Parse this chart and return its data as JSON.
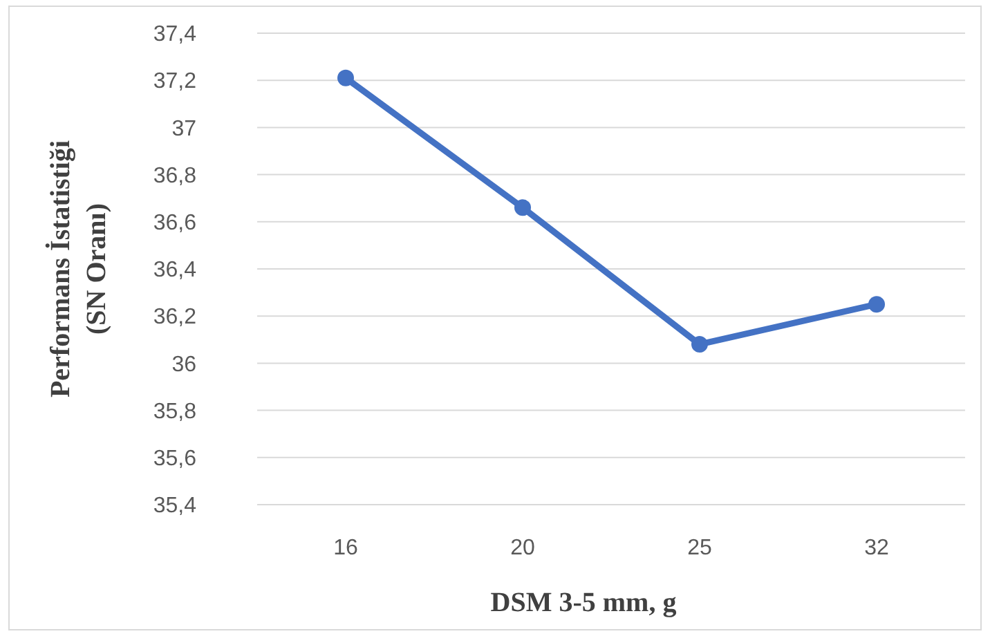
{
  "chart_data": {
    "type": "line",
    "xlabel": "DSM 3-5 mm, g",
    "ylabel": "Performans İstatistiği (SN Oranı)",
    "categories": [
      "16",
      "20",
      "25",
      "32"
    ],
    "series": [
      {
        "color": "#4472c4",
        "values": [
          37.21,
          36.66,
          36.08,
          36.25
        ]
      }
    ],
    "ylim": [
      35.4,
      37.4
    ],
    "yticks": [
      {
        "value": 35.4,
        "label": "35,4"
      },
      {
        "value": 35.6,
        "label": "35,6"
      },
      {
        "value": 35.8,
        "label": "35,8"
      },
      36,
      {
        "value": 36.2,
        "label": "36,2"
      },
      {
        "value": 36.4,
        "label": "36,4"
      },
      {
        "value": 36.6,
        "label": "36,6"
      },
      {
        "value": 36.8,
        "label": "36,8"
      },
      37,
      {
        "value": 37.2,
        "label": "37,2"
      },
      {
        "value": 37.4,
        "label": "37,4"
      }
    ],
    "grid": "y",
    "marker": "circle",
    "line_style": "solid"
  }
}
